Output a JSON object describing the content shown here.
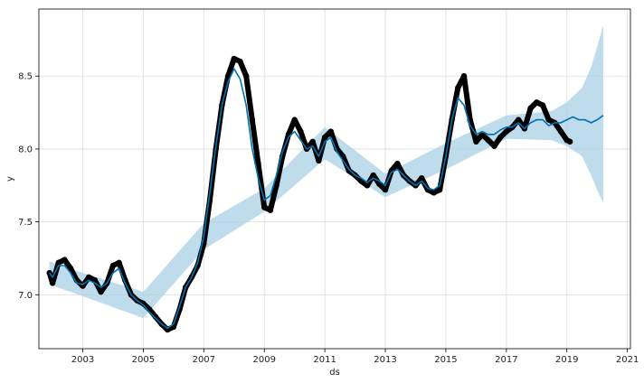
{
  "chart_data": {
    "type": "line",
    "xlabel": "ds",
    "ylabel": "y",
    "xlim": [
      2001.55,
      2021.1
    ],
    "ylim": [
      6.63,
      8.96
    ],
    "grid": true,
    "x_ticks": [
      2003,
      2005,
      2007,
      2009,
      2011,
      2013,
      2015,
      2017,
      2019,
      2021
    ],
    "x_tick_labels": [
      "2003",
      "2005",
      "2007",
      "2009",
      "2011",
      "2013",
      "2015",
      "2017",
      "2019",
      "2021"
    ],
    "y_ticks": [
      7.0,
      7.5,
      8.0,
      8.5
    ],
    "y_tick_labels": [
      "7.0",
      "7.5",
      "8.0",
      "8.5"
    ],
    "colors": {
      "observed": "#000000",
      "forecast_line": "#0072B2",
      "uncertainty_band": "#a8d0e6",
      "grid": "#dddddd",
      "axis": "#000000"
    },
    "series": [
      {
        "role": "observed",
        "x": [
          2001.9,
          2002.0,
          2002.2,
          2002.4,
          2002.6,
          2002.8,
          2003.0,
          2003.2,
          2003.4,
          2003.6,
          2003.8,
          2004.0,
          2004.2,
          2004.4,
          2004.6,
          2004.8,
          2005.0,
          2005.2,
          2005.4,
          2005.6,
          2005.8,
          2006.0,
          2006.2,
          2006.4,
          2006.6,
          2006.8,
          2007.0,
          2007.2,
          2007.4,
          2007.6,
          2007.8,
          2008.0,
          2008.2,
          2008.4,
          2008.6,
          2008.8,
          2009.0,
          2009.2,
          2009.4,
          2009.6,
          2009.8,
          2010.0,
          2010.2,
          2010.4,
          2010.6,
          2010.8,
          2011.0,
          2011.2,
          2011.4,
          2011.6,
          2011.8,
          2012.0,
          2012.2,
          2012.4,
          2012.6,
          2012.8,
          2013.0,
          2013.2,
          2013.4,
          2013.6,
          2013.8,
          2014.0,
          2014.2,
          2014.4,
          2014.6,
          2014.8,
          2015.0,
          2015.2,
          2015.4,
          2015.6,
          2015.8,
          2016.0,
          2016.2,
          2016.4,
          2016.6,
          2016.8,
          2017.0,
          2017.2,
          2017.4,
          2017.6,
          2017.8,
          2018.0,
          2018.2,
          2018.4,
          2018.6,
          2018.8,
          2019.0,
          2019.1
        ],
        "y": [
          7.15,
          7.08,
          7.22,
          7.24,
          7.18,
          7.1,
          7.06,
          7.12,
          7.1,
          7.02,
          7.08,
          7.2,
          7.22,
          7.1,
          7.0,
          6.96,
          6.94,
          6.9,
          6.85,
          6.8,
          6.76,
          6.78,
          6.9,
          7.05,
          7.12,
          7.2,
          7.35,
          7.65,
          8.0,
          8.3,
          8.5,
          8.62,
          8.6,
          8.5,
          8.2,
          7.9,
          7.6,
          7.58,
          7.75,
          7.95,
          8.1,
          8.2,
          8.12,
          8.0,
          8.05,
          7.92,
          8.08,
          8.12,
          8.0,
          7.95,
          7.85,
          7.82,
          7.78,
          7.75,
          7.82,
          7.76,
          7.72,
          7.85,
          7.9,
          7.82,
          7.78,
          7.75,
          7.8,
          7.72,
          7.7,
          7.72,
          7.95,
          8.2,
          8.42,
          8.5,
          8.2,
          8.05,
          8.1,
          8.06,
          8.02,
          8.08,
          8.12,
          8.15,
          8.2,
          8.14,
          8.28,
          8.32,
          8.3,
          8.2,
          8.18,
          8.12,
          8.06,
          8.05
        ]
      },
      {
        "role": "forecast",
        "x": [
          2001.9,
          2002.0,
          2002.2,
          2002.4,
          2002.6,
          2002.8,
          2003.0,
          2003.2,
          2003.4,
          2003.6,
          2003.8,
          2004.0,
          2004.2,
          2004.4,
          2004.6,
          2004.8,
          2005.0,
          2005.2,
          2005.4,
          2005.6,
          2005.8,
          2006.0,
          2006.2,
          2006.4,
          2006.6,
          2006.8,
          2007.0,
          2007.2,
          2007.4,
          2007.6,
          2007.8,
          2008.0,
          2008.2,
          2008.4,
          2008.6,
          2008.8,
          2009.0,
          2009.2,
          2009.4,
          2009.6,
          2009.8,
          2010.0,
          2010.2,
          2010.4,
          2010.6,
          2010.8,
          2011.0,
          2011.2,
          2011.4,
          2011.6,
          2011.8,
          2012.0,
          2012.2,
          2012.4,
          2012.6,
          2012.8,
          2013.0,
          2013.2,
          2013.4,
          2013.6,
          2013.8,
          2014.0,
          2014.2,
          2014.4,
          2014.6,
          2014.8,
          2015.0,
          2015.2,
          2015.4,
          2015.6,
          2015.8,
          2016.0,
          2016.2,
          2016.4,
          2016.6,
          2016.8,
          2017.0,
          2017.2,
          2017.4,
          2017.6,
          2017.8,
          2018.0,
          2018.2,
          2018.4,
          2018.6,
          2018.8,
          2019.0,
          2019.2,
          2019.4,
          2019.6,
          2019.8,
          2020.0,
          2020.2
        ],
        "y": [
          7.15,
          7.12,
          7.2,
          7.2,
          7.15,
          7.08,
          7.07,
          7.1,
          7.08,
          7.05,
          7.08,
          7.15,
          7.18,
          7.08,
          7.0,
          6.96,
          6.93,
          6.88,
          6.84,
          6.8,
          6.77,
          6.8,
          6.92,
          7.05,
          7.12,
          7.22,
          7.4,
          7.7,
          8.02,
          8.3,
          8.46,
          8.55,
          8.48,
          8.3,
          8.0,
          7.8,
          7.65,
          7.68,
          7.82,
          7.98,
          8.08,
          8.12,
          8.06,
          8.0,
          8.02,
          7.95,
          8.05,
          8.08,
          7.98,
          7.92,
          7.86,
          7.82,
          7.8,
          7.77,
          7.8,
          7.78,
          7.75,
          7.84,
          7.86,
          7.82,
          7.78,
          7.75,
          7.78,
          7.73,
          7.72,
          7.75,
          7.95,
          8.2,
          8.35,
          8.3,
          8.16,
          8.1,
          8.12,
          8.1,
          8.1,
          8.13,
          8.15,
          8.15,
          8.18,
          8.14,
          8.18,
          8.2,
          8.2,
          8.16,
          8.18,
          8.18,
          8.2,
          8.22,
          8.2,
          8.2,
          8.18,
          8.2,
          8.23
        ]
      },
      {
        "role": "uncertainty_band",
        "x": [
          2001.9,
          2003.0,
          2005.0,
          2007.0,
          2009.0,
          2011.0,
          2013.0,
          2015.0,
          2017.0,
          2018.5,
          2019.0,
          2019.5,
          2019.8,
          2020.0,
          2020.2
        ],
        "lower": [
          7.07,
          6.99,
          6.84,
          7.31,
          7.57,
          7.93,
          7.67,
          7.86,
          8.07,
          8.06,
          8.02,
          7.95,
          7.82,
          7.72,
          7.63
        ],
        "upper": [
          7.23,
          7.15,
          7.02,
          7.49,
          7.73,
          8.15,
          7.83,
          8.04,
          8.23,
          8.26,
          8.32,
          8.42,
          8.56,
          8.7,
          8.85
        ]
      }
    ]
  }
}
